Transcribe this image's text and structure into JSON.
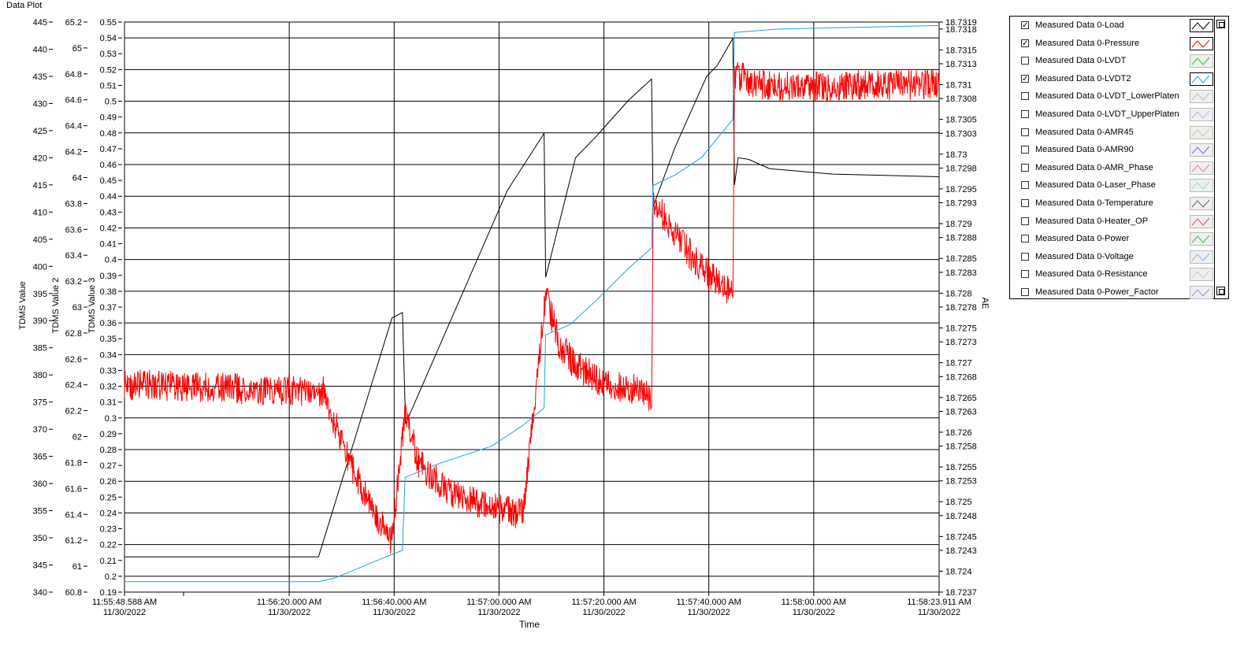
{
  "window": {
    "title": "Data Plot"
  },
  "chart_data": {
    "type": "line",
    "xlabel": "Time",
    "x_ticks": [
      {
        "time": "11:55:48.588 AM",
        "date": "11/30/2022"
      },
      {
        "time": "11:56:20.000 AM",
        "date": "11/30/2022"
      },
      {
        "time": "11:56:40.000 AM",
        "date": "11/30/2022"
      },
      {
        "time": "11:57:00.000 AM",
        "date": "11/30/2022"
      },
      {
        "time": "11:57:20.000 AM",
        "date": "11/30/2022"
      },
      {
        "time": "11:57:40.000 AM",
        "date": "11/30/2022"
      },
      {
        "time": "11:58:00.000 AM",
        "date": "11/30/2022"
      },
      {
        "time": "11:58:23.911 AM",
        "date": "11/30/2022"
      }
    ],
    "x_tick_seconds": [
      0,
      31.412,
      51.412,
      71.412,
      91.412,
      111.412,
      131.412,
      155.323
    ],
    "xlim": [
      0,
      155.323
    ],
    "axes": [
      {
        "label": "TDMS Value",
        "ylim": [
          340,
          445
        ],
        "ticks": [
          "340",
          "345",
          "350",
          "355",
          "360",
          "365",
          "370",
          "375",
          "380",
          "385",
          "390",
          "395",
          "400",
          "405",
          "410",
          "415",
          "420",
          "425",
          "430",
          "435",
          "440",
          "445"
        ]
      },
      {
        "label": "TDMS Value 2",
        "ylim": [
          60.8,
          65.2
        ],
        "ticks": [
          "60.8",
          "61",
          "61.2",
          "61.4",
          "61.6",
          "61.8",
          "62",
          "62.2",
          "62.4",
          "62.6",
          "62.8",
          "63",
          "63.2",
          "63.4",
          "63.6",
          "63.8",
          "64",
          "64.2",
          "64.4",
          "64.6",
          "64.8",
          "65",
          "65.2"
        ]
      },
      {
        "label": "TDMS Value 3",
        "ylim": [
          0.19,
          0.55
        ],
        "ticks": [
          "0.19",
          "0.2",
          "0.21",
          "0.22",
          "0.23",
          "0.24",
          "0.25",
          "0.26",
          "0.27",
          "0.28",
          "0.29",
          "0.3",
          "0.31",
          "0.32",
          "0.33",
          "0.34",
          "0.35",
          "0.36",
          "0.37",
          "0.38",
          "0.39",
          "0.4",
          "0.41",
          "0.42",
          "0.43",
          "0.44",
          "0.45",
          "0.46",
          "0.47",
          "0.48",
          "0.49",
          "0.5",
          "0.51",
          "0.52",
          "0.53",
          "0.54",
          "0.55"
        ]
      },
      {
        "label": "AE",
        "side": "right",
        "ylim": [
          18.7237,
          18.7319
        ],
        "ticks": [
          "18.7237",
          "18.724",
          "18.7243",
          "18.7245",
          "18.7248",
          "18.725",
          "18.7253",
          "18.7255",
          "18.7258",
          "18.726",
          "18.7263",
          "18.7265",
          "18.7268",
          "18.727",
          "18.7273",
          "18.7275",
          "18.7278",
          "18.728",
          "18.7283",
          "18.7285",
          "18.7288",
          "18.729",
          "18.7293",
          "18.7295",
          "18.7298",
          "18.73",
          "18.7303",
          "18.7305",
          "18.7308",
          "18.731",
          "18.7313",
          "18.7315",
          "18.7318",
          "18.7319"
        ]
      }
    ],
    "series": [
      {
        "name": "Measured Data 0-Load",
        "color": "#000000",
        "axis": 0,
        "points": [
          [
            0,
            346.5
          ],
          [
            37,
            346.5
          ],
          [
            51,
            390.5
          ],
          [
            53,
            391.5
          ],
          [
            53.6,
            371
          ],
          [
            73,
            414
          ],
          [
            80,
            424.5
          ],
          [
            80.3,
            398
          ],
          [
            86,
            420
          ],
          [
            90,
            424
          ],
          [
            96,
            430.5
          ],
          [
            100.5,
            434.5
          ],
          [
            100.8,
            411
          ],
          [
            105,
            422
          ],
          [
            111,
            435
          ],
          [
            113,
            437
          ],
          [
            116,
            442
          ],
          [
            116.3,
            415
          ],
          [
            117,
            420
          ],
          [
            119,
            419.7
          ],
          [
            123,
            418
          ],
          [
            135,
            417
          ],
          [
            155.3,
            416.5
          ]
        ]
      },
      {
        "name": "Measured Data 0-Pressure",
        "color": "#ff0000",
        "axis": 1,
        "points": [
          [
            0,
            62.4
          ],
          [
            38,
            62.35
          ],
          [
            41,
            62.0
          ],
          [
            44,
            61.7
          ],
          [
            47,
            61.45
          ],
          [
            51,
            61.2
          ],
          [
            53.5,
            62.2
          ],
          [
            56,
            61.8
          ],
          [
            61,
            61.6
          ],
          [
            66,
            61.5
          ],
          [
            70,
            61.45
          ],
          [
            76,
            61.4
          ],
          [
            80.3,
            63.1
          ],
          [
            83,
            62.7
          ],
          [
            86,
            62.55
          ],
          [
            92,
            62.4
          ],
          [
            99,
            62.35
          ],
          [
            100.5,
            62.25
          ],
          [
            100.8,
            63.85
          ],
          [
            104,
            63.6
          ],
          [
            110,
            63.3
          ],
          [
            116,
            63.1
          ],
          [
            116.3,
            64.8
          ],
          [
            120,
            64.72
          ],
          [
            130,
            64.7
          ],
          [
            155.3,
            64.72
          ]
        ],
        "noise": 0.12
      },
      {
        "name": "Measured Data 0-LVDT2",
        "color": "#1ca0e8",
        "axis": 3,
        "points": [
          [
            0,
            18.72385
          ],
          [
            37,
            18.72385
          ],
          [
            40,
            18.7239
          ],
          [
            48,
            18.72415
          ],
          [
            53,
            18.7243
          ],
          [
            53.5,
            18.72535
          ],
          [
            60,
            18.72555
          ],
          [
            70,
            18.7258
          ],
          [
            76,
            18.7261
          ],
          [
            80,
            18.72635
          ],
          [
            80.3,
            18.7274
          ],
          [
            85,
            18.72755
          ],
          [
            90,
            18.7279
          ],
          [
            96,
            18.72835
          ],
          [
            100.5,
            18.72865
          ],
          [
            100.8,
            18.72955
          ],
          [
            105,
            18.7297
          ],
          [
            110,
            18.72995
          ],
          [
            116,
            18.7305
          ],
          [
            116.3,
            18.73175
          ],
          [
            125,
            18.7318
          ],
          [
            155.3,
            18.73185
          ]
        ]
      }
    ]
  },
  "legend": {
    "items": [
      {
        "label": "Measured Data 0-Load",
        "checked": true,
        "color": "#000000"
      },
      {
        "label": "Measured Data 0-Pressure",
        "checked": true,
        "color": "#ff0000"
      },
      {
        "label": "Measured Data 0-LVDT",
        "checked": false,
        "color": "#22cc22"
      },
      {
        "label": "Measured Data 0-LVDT2",
        "checked": true,
        "color": "#1ca0e8"
      },
      {
        "label": "Measured Data 0-LVDT_LowerPlaten",
        "checked": false,
        "color": "#bdbdbd"
      },
      {
        "label": "Measured Data 0-LVDT_UpperPlaten",
        "checked": false,
        "color": "#c9a8ee"
      },
      {
        "label": "Measured Data 0-AMR45",
        "checked": false,
        "color": "#d8c48c"
      },
      {
        "label": "Measured Data 0-AMR90",
        "checked": false,
        "color": "#6a6aee"
      },
      {
        "label": "Measured Data 0-AMR_Phase",
        "checked": false,
        "color": "#f08080"
      },
      {
        "label": "Measured Data 0-Laser_Phase",
        "checked": false,
        "color": "#8fe3b8"
      },
      {
        "label": "Measured Data 0-Temperature",
        "checked": false,
        "color": "#666666"
      },
      {
        "label": "Measured Data 0-Heater_OP",
        "checked": false,
        "color": "#e05050"
      },
      {
        "label": "Measured Data 0-Power",
        "checked": false,
        "color": "#40c040"
      },
      {
        "label": "Measured Data 0-Voltage",
        "checked": false,
        "color": "#80b8ee"
      },
      {
        "label": "Measured Data 0-Resistance",
        "checked": false,
        "color": "#c8c8c8"
      },
      {
        "label": "Measured Data 0-Power_Factor",
        "checked": false,
        "color": "#9c8ce0"
      }
    ]
  }
}
